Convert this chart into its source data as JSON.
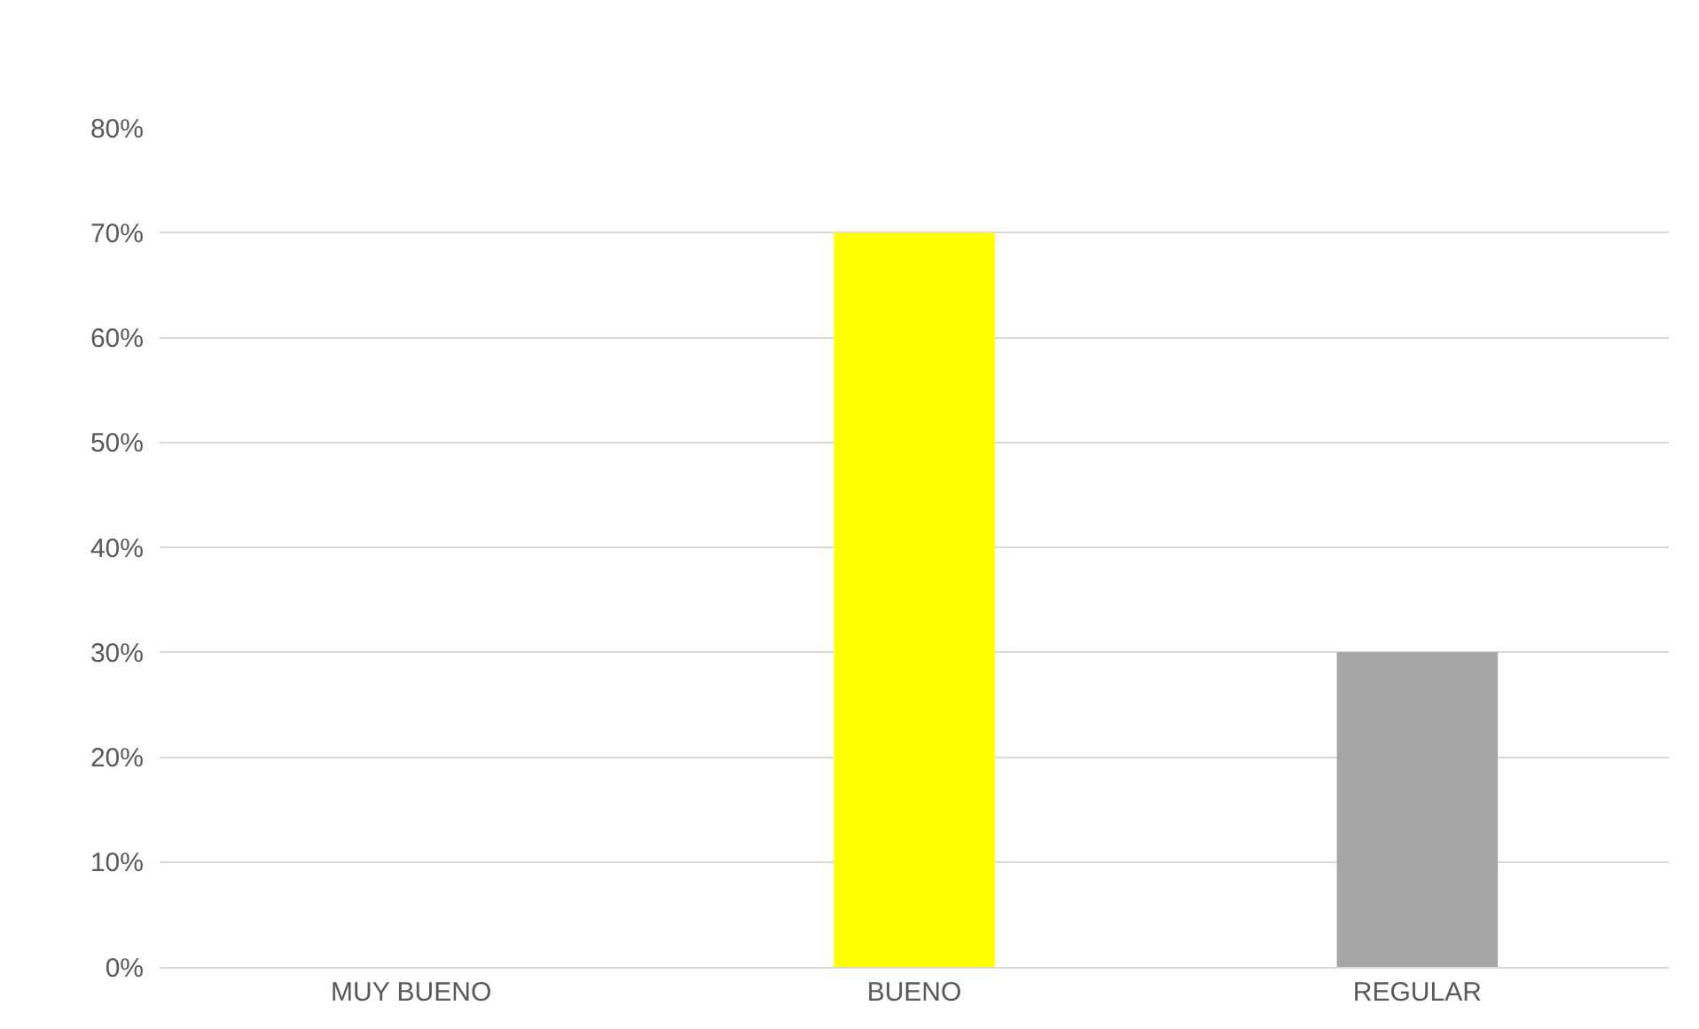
{
  "chart_data": {
    "type": "bar",
    "categories": [
      "MUY BUENO",
      "BUENO",
      "REGULAR"
    ],
    "values": [
      0,
      70,
      30
    ],
    "colors": [
      "#4472c4",
      "#ffff00",
      "#a5a5a5"
    ],
    "ylim": [
      0,
      80
    ],
    "yticks": [
      {
        "value": 0,
        "label": "0%"
      },
      {
        "value": 10,
        "label": "10%"
      },
      {
        "value": 20,
        "label": "20%"
      },
      {
        "value": 30,
        "label": "30%"
      },
      {
        "value": 40,
        "label": "40%"
      },
      {
        "value": 50,
        "label": "50%"
      },
      {
        "value": 60,
        "label": "60%"
      },
      {
        "value": 70,
        "label": "70%"
      },
      {
        "value": 80,
        "label": "80%"
      }
    ],
    "grid": "y",
    "legend": false
  }
}
